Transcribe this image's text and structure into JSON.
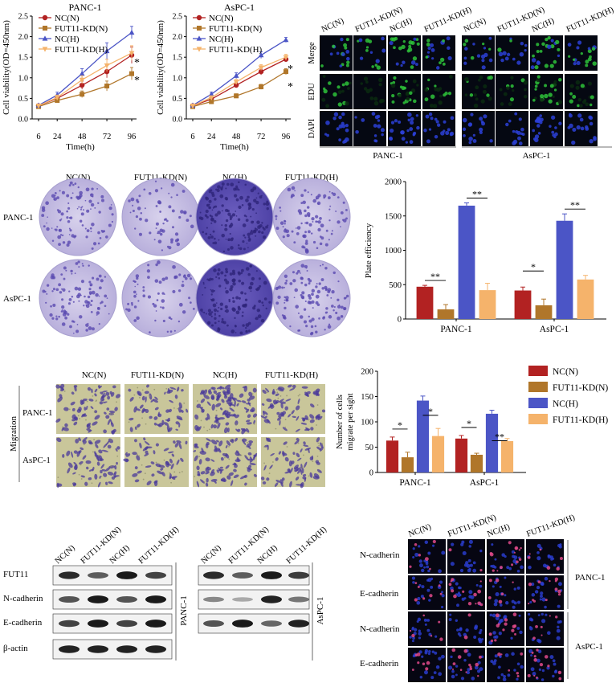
{
  "colors": {
    "nc_n": "#b22222",
    "fut_n": "#b0762a",
    "nc_h": "#4b55c6",
    "fut_h": "#f5b36b",
    "edu": "#2ec23a",
    "dapi": "#2b3fd6",
    "crystal": "#5a4ab0",
    "plate_bg": "#cfc8e6",
    "transwell_bg": "#c9c69a",
    "ecad": "#e04a8a"
  },
  "groups": [
    "NC(N)",
    "FUT11-KD(N)",
    "NC(H)",
    "FUT11-KD(H)"
  ],
  "cell_lines": [
    "PANC-1",
    "AsPC-1"
  ],
  "sig": {
    "single": "*",
    "double": "**"
  },
  "chart_data": [
    {
      "type": "line",
      "title": "PANC-1",
      "xlabel": "Time(h)",
      "ylabel": "Cell viability(OD=450nm)",
      "x": [
        6,
        24,
        48,
        72,
        96
      ],
      "xticks": [
        "6",
        "24",
        "48",
        "72",
        "96"
      ],
      "yticks": [
        "0.0",
        "0.5",
        "1.0",
        "1.5",
        "2.0",
        "2.5"
      ],
      "ylim": [
        0,
        2.5
      ],
      "legend": [
        "NC(N)",
        "FUT11-KD(N)",
        "NC(H)",
        "FUT11-KD(H)"
      ],
      "series": [
        {
          "name": "NC(N)",
          "values": [
            0.32,
            0.5,
            0.82,
            1.15,
            1.55
          ],
          "err": [
            0.03,
            0.06,
            0.1,
            0.15,
            0.2
          ]
        },
        {
          "name": "FUT11-KD(N)",
          "values": [
            0.3,
            0.45,
            0.6,
            0.8,
            1.1
          ],
          "err": [
            0.03,
            0.05,
            0.08,
            0.12,
            0.15
          ]
        },
        {
          "name": "NC(H)",
          "values": [
            0.33,
            0.58,
            1.1,
            1.65,
            2.1
          ],
          "err": [
            0.03,
            0.07,
            0.12,
            0.2,
            0.15
          ]
        },
        {
          "name": "FUT11-KD(H)",
          "values": [
            0.32,
            0.52,
            0.95,
            1.3,
            1.6
          ],
          "err": [
            0.03,
            0.06,
            0.1,
            0.15,
            0.18
          ]
        }
      ]
    },
    {
      "type": "line",
      "title": "AsPC-1",
      "xlabel": "Time(h)",
      "ylabel": "Cell viability(OD=450nm)",
      "x": [
        6,
        24,
        48,
        72,
        96
      ],
      "xticks": [
        "6",
        "24",
        "48",
        "72",
        "96"
      ],
      "yticks": [
        "0.0",
        "0.5",
        "1.0",
        "1.5",
        "2.0",
        "2.5"
      ],
      "ylim": [
        0,
        2.5
      ],
      "legend": [
        "NC(N)",
        "FUT11-KD(N)",
        "NC(H)",
        "FUT11-KD(H)"
      ],
      "series": [
        {
          "name": "NC(N)",
          "values": [
            0.32,
            0.48,
            0.82,
            1.15,
            1.45
          ],
          "err": [
            0.02,
            0.04,
            0.06,
            0.08,
            0.06
          ]
        },
        {
          "name": "FUT11-KD(N)",
          "values": [
            0.3,
            0.42,
            0.56,
            0.78,
            1.15
          ],
          "err": [
            0.02,
            0.03,
            0.05,
            0.06,
            0.07
          ]
        },
        {
          "name": "NC(H)",
          "values": [
            0.33,
            0.6,
            1.05,
            1.55,
            1.92
          ],
          "err": [
            0.02,
            0.05,
            0.07,
            0.08,
            0.06
          ]
        },
        {
          "name": "FUT11-KD(H)",
          "values": [
            0.32,
            0.52,
            0.9,
            1.25,
            1.5
          ],
          "err": [
            0.02,
            0.04,
            0.06,
            0.07,
            0.07
          ]
        }
      ]
    },
    {
      "type": "bar",
      "ylabel": "Plate efficiency",
      "categories": [
        "PANC-1",
        "AsPC-1"
      ],
      "yticks": [
        "0",
        "500",
        "1000",
        "1500",
        "2000"
      ],
      "ylim": [
        0,
        2000
      ],
      "series": [
        {
          "name": "NC(N)",
          "values": [
            470,
            415
          ],
          "err": [
            20,
            50
          ]
        },
        {
          "name": "FUT11-KD(N)",
          "values": [
            140,
            200
          ],
          "err": [
            70,
            90
          ]
        },
        {
          "name": "NC(H)",
          "values": [
            1650,
            1430
          ],
          "err": [
            40,
            100
          ]
        },
        {
          "name": "FUT11-KD(H)",
          "values": [
            420,
            575
          ],
          "err": [
            100,
            60
          ]
        }
      ]
    },
    {
      "type": "bar",
      "ylabel": "Number of cells migrate per sight",
      "categories": [
        "PANC-1",
        "AsPC-1"
      ],
      "yticks": [
        "0",
        "50",
        "100",
        "150",
        "200"
      ],
      "ylim": [
        0,
        200
      ],
      "legend": [
        "NC(N)",
        "FUT11-KD(N)",
        "NC(H)",
        "FUT11-KD(H)"
      ],
      "series": [
        {
          "name": "NC(N)",
          "values": [
            63,
            67
          ],
          "err": [
            7,
            6
          ]
        },
        {
          "name": "FUT11-KD(N)",
          "values": [
            30,
            35
          ],
          "err": [
            10,
            3
          ]
        },
        {
          "name": "NC(H)",
          "values": [
            142,
            116
          ],
          "err": [
            9,
            7
          ]
        },
        {
          "name": "FUT11-KD(H)",
          "values": [
            72,
            62
          ],
          "err": [
            15,
            5
          ]
        }
      ]
    }
  ],
  "edu_panel": {
    "rows": [
      "Merge",
      "EDU",
      "DAPI"
    ]
  },
  "migration": {
    "label": "Migration"
  },
  "western": {
    "proteins": [
      "FUT11",
      "N-cadherin",
      "E-cadherin",
      "β-actin"
    ]
  },
  "if_panel": {
    "rows": [
      "N-cadherin",
      "E-cadherin",
      "N-cadherin",
      "E-cadherin"
    ]
  }
}
